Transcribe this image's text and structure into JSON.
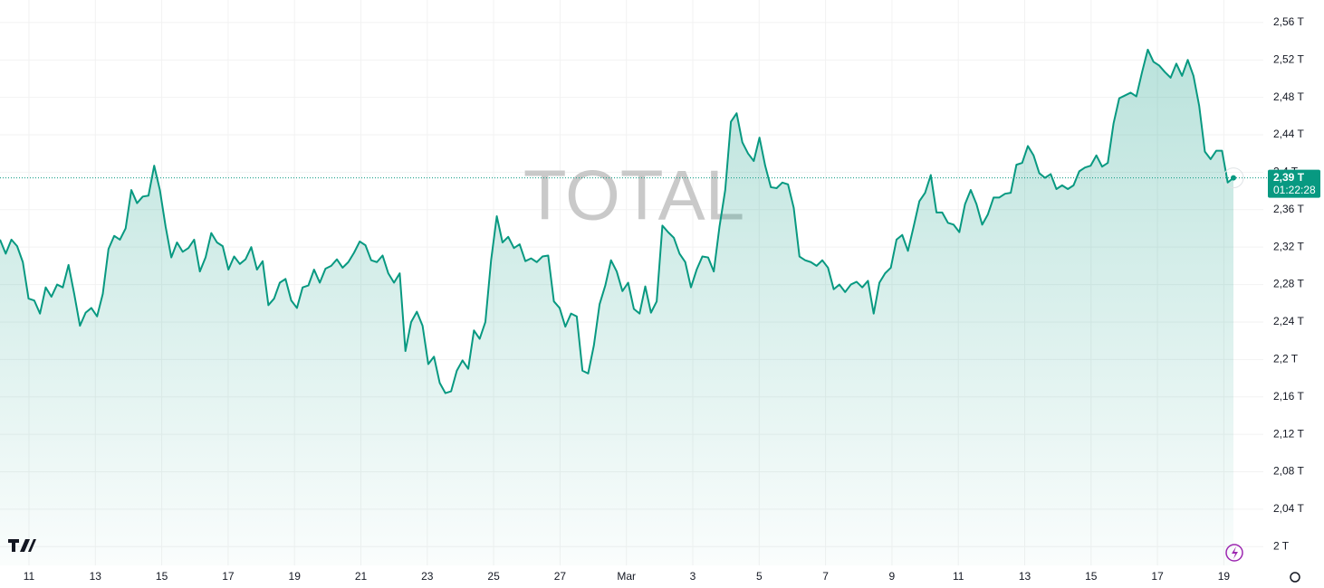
{
  "chart_data": {
    "type": "area",
    "watermark": "TOTAL",
    "color": "#089981",
    "grid": true,
    "x_labels": [
      "11",
      "13",
      "15",
      "17",
      "19",
      "21",
      "23",
      "25",
      "27",
      "Mar",
      "3",
      "5",
      "7",
      "9",
      "11",
      "13",
      "15",
      "17",
      "19"
    ],
    "values": [
      2.328,
      2.313,
      2.328,
      2.321,
      2.304,
      2.265,
      2.263,
      2.249,
      2.277,
      2.267,
      2.28,
      2.277,
      2.301,
      2.27,
      2.236,
      2.25,
      2.255,
      2.246,
      2.27,
      2.318,
      2.332,
      2.328,
      2.34,
      2.381,
      2.367,
      2.374,
      2.375,
      2.407,
      2.381,
      2.342,
      2.309,
      2.325,
      2.315,
      2.319,
      2.328,
      2.294,
      2.309,
      2.335,
      2.325,
      2.321,
      2.296,
      2.31,
      2.302,
      2.307,
      2.32,
      2.296,
      2.305,
      2.258,
      2.265,
      2.282,
      2.286,
      2.263,
      2.255,
      2.277,
      2.279,
      2.296,
      2.282,
      2.297,
      2.3,
      2.307,
      2.298,
      2.304,
      2.314,
      2.326,
      2.322,
      2.306,
      2.304,
      2.311,
      2.292,
      2.282,
      2.292,
      2.209,
      2.24,
      2.251,
      2.236,
      2.195,
      2.203,
      2.175,
      2.164,
      2.166,
      2.188,
      2.199,
      2.19,
      2.231,
      2.222,
      2.24,
      2.306,
      2.353,
      2.325,
      2.331,
      2.319,
      2.323,
      2.305,
      2.308,
      2.304,
      2.31,
      2.311,
      2.262,
      2.255,
      2.235,
      2.249,
      2.246,
      2.188,
      2.185,
      2.215,
      2.259,
      2.279,
      2.306,
      2.294,
      2.273,
      2.282,
      2.254,
      2.249,
      2.278,
      2.25,
      2.262,
      2.343,
      2.336,
      2.33,
      2.313,
      2.304,
      2.277,
      2.296,
      2.31,
      2.309,
      2.294,
      2.342,
      2.381,
      2.454,
      2.463,
      2.432,
      2.42,
      2.412,
      2.437,
      2.407,
      2.384,
      2.383,
      2.389,
      2.387,
      2.362,
      2.31,
      2.306,
      2.304,
      2.3,
      2.306,
      2.298,
      2.275,
      2.28,
      2.272,
      2.28,
      2.283,
      2.277,
      2.284,
      2.249,
      2.282,
      2.292,
      2.298,
      2.328,
      2.333,
      2.316,
      2.342,
      2.369,
      2.378,
      2.397,
      2.357,
      2.357,
      2.346,
      2.344,
      2.336,
      2.366,
      2.381,
      2.366,
      2.344,
      2.355,
      2.373,
      2.373,
      2.377,
      2.378,
      2.408,
      2.41,
      2.428,
      2.418,
      2.399,
      2.394,
      2.398,
      2.382,
      2.386,
      2.382,
      2.386,
      2.401,
      2.405,
      2.407,
      2.418,
      2.406,
      2.41,
      2.452,
      2.479,
      2.482,
      2.485,
      2.481,
      2.507,
      2.531,
      2.518,
      2.514,
      2.507,
      2.501,
      2.516,
      2.503,
      2.52,
      2.503,
      2.471,
      2.422,
      2.414,
      2.423,
      2.423,
      2.389,
      2.394
    ],
    "ylim": [
      1.98,
      2.584
    ],
    "yticks": [
      {
        "value": 2.56,
        "label": "2,56 T"
      },
      {
        "value": 2.52,
        "label": "2,52 T"
      },
      {
        "value": 2.48,
        "label": "2,48 T"
      },
      {
        "value": 2.44,
        "label": "2,44 T"
      },
      {
        "value": 2.4,
        "label": "2,4 T"
      },
      {
        "value": 2.36,
        "label": "2,36 T"
      },
      {
        "value": 2.32,
        "label": "2,32 T"
      },
      {
        "value": 2.28,
        "label": "2,28 T"
      },
      {
        "value": 2.24,
        "label": "2,24 T"
      },
      {
        "value": 2.2,
        "label": "2,2 T"
      },
      {
        "value": 2.16,
        "label": "2,16 T"
      },
      {
        "value": 2.12,
        "label": "2,12 T"
      },
      {
        "value": 2.08,
        "label": "2,08 T"
      },
      {
        "value": 2.04,
        "label": "2,04 T"
      },
      {
        "value": 2,
        "label": "2 T"
      }
    ],
    "current_price": {
      "value": 2.394,
      "label": "2,39 T"
    },
    "countdown": "01:22:28"
  }
}
